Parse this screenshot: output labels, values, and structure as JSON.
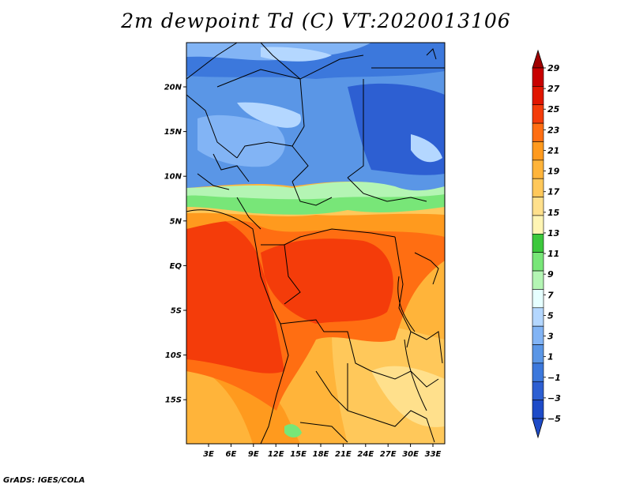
{
  "title": "2m dewpoint Td (C) VT:2020013106",
  "credit": "GrADS: IGES/COLA",
  "map": {
    "x_ticks": [
      "3E",
      "6E",
      "9E",
      "12E",
      "15E",
      "18E",
      "21E",
      "24E",
      "27E",
      "30E",
      "33E"
    ],
    "y_ticks": [
      "20N",
      "15N",
      "10N",
      "5N",
      "EQ",
      "5S",
      "10S",
      "15S"
    ]
  },
  "colorbar": {
    "labels": [
      "29",
      "27",
      "25",
      "23",
      "21",
      "19",
      "17",
      "15",
      "13",
      "11",
      "9",
      "7",
      "5",
      "3",
      "1",
      "−1",
      "−3",
      "−5"
    ],
    "colors": [
      "#c80000",
      "#e11600",
      "#f43c0a",
      "#ff6e12",
      "#ff9a1e",
      "#ffb43a",
      "#ffc85a",
      "#ffe08c",
      "#fff5b4",
      "#3cc83c",
      "#78e678",
      "#b4f5b4",
      "#e6ffff",
      "#b4d7ff",
      "#82b4f5",
      "#5a96e6",
      "#3c78dc",
      "#2d5fd2",
      "#1e4bc8"
    ],
    "top_color": "#a00000",
    "bottom_color": "#1e4bc8"
  }
}
